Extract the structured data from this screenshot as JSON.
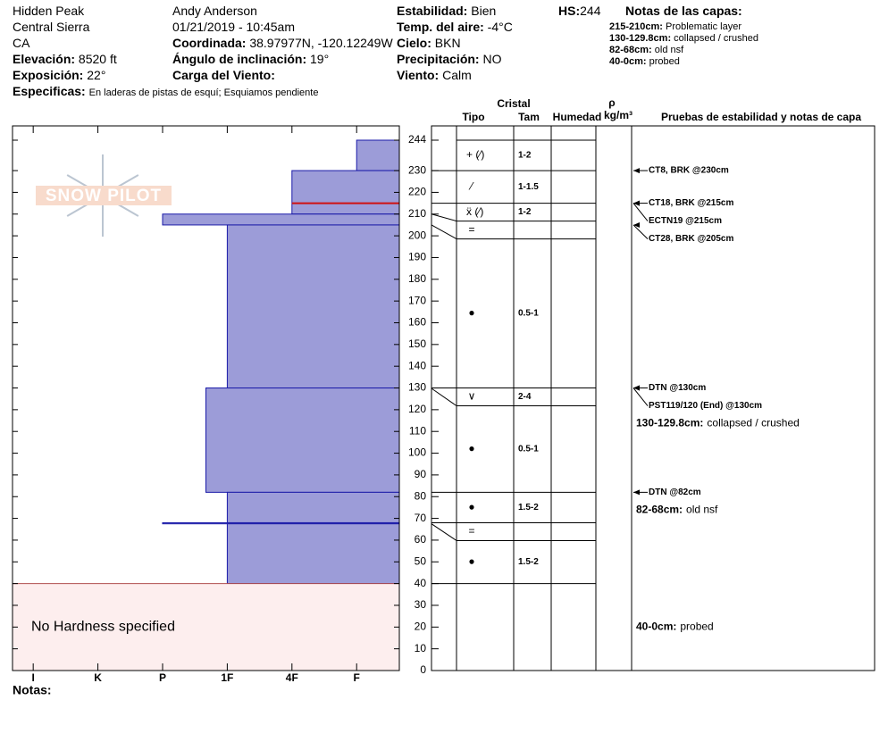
{
  "header": {
    "location": "Hidden Peak",
    "range": "Central Sierra",
    "state": "CA",
    "elevation": {
      "label": "Elevación:",
      "value": "8520 ft"
    },
    "aspect": {
      "label": "Exposición:",
      "value": "22°"
    },
    "specifics": {
      "label": "Especificas:",
      "value": "En laderas de pistas de esquí; Esquiamos pendiente"
    },
    "observer": "Andy Anderson",
    "datetime": "01/21/2019 - 10:45am",
    "coord": {
      "label": "Coordinada:",
      "value": "38.97977N, -120.12249W"
    },
    "slope": {
      "label": "Ángulo de inclinación:",
      "value": "19°"
    },
    "wind_load": {
      "label": "Carga del Viento:"
    },
    "stability": {
      "label": "Estabilidad:",
      "value": "Bien"
    },
    "air_temp": {
      "label": "Temp. del aire:",
      "value": "-4°C"
    },
    "sky": {
      "label": "Cielo:",
      "value": "BKN"
    },
    "precip": {
      "label": "Precipitación:",
      "value": "NO"
    },
    "wind": {
      "label": "Viento:",
      "value": "Calm"
    },
    "hs": {
      "label": "HS:",
      "value": "244"
    },
    "layer_notes_title": "Notas de las capas:"
  },
  "chart_data": {
    "type": "snow_profile",
    "logo": "SNOW PILOT",
    "xlim": [
      0.68,
      6.66
    ],
    "xticks": [
      {
        "value": 1,
        "label": "I"
      },
      {
        "value": 2,
        "label": "K"
      },
      {
        "value": 3,
        "label": "P"
      },
      {
        "value": 4,
        "label": "1F"
      },
      {
        "value": 5,
        "label": "4F"
      },
      {
        "value": 6,
        "label": "F"
      }
    ],
    "ylim": [
      0,
      244
    ],
    "yticks": [
      0,
      10,
      20,
      30,
      40,
      50,
      60,
      70,
      80,
      90,
      100,
      110,
      120,
      130,
      140,
      150,
      160,
      170,
      180,
      190,
      200,
      210,
      220,
      230,
      244
    ],
    "color": "#9c9cd8",
    "layers": [
      {
        "top": 244,
        "bottom": 230,
        "hardness": 6
      },
      {
        "top": 230,
        "bottom": 210,
        "hardness": 5
      },
      {
        "top": 210,
        "bottom": 205,
        "hardness": 3
      },
      {
        "top": 205,
        "bottom": 130,
        "hardness": 4
      },
      {
        "top": 130,
        "bottom": 82,
        "hardness": 3.67
      },
      {
        "top": 82,
        "bottom": 68,
        "hardness": 4
      },
      {
        "top": 68,
        "bottom": 67.5,
        "hardness": 3
      },
      {
        "top": 67.5,
        "bottom": 40,
        "hardness": 4
      }
    ],
    "problem_line": 215,
    "no_hardness": {
      "top": 40,
      "bottom": 0,
      "label": "No Hardness specified"
    },
    "columns": {
      "crystal": "Cristal",
      "type": "Tipo",
      "size": "Tam",
      "moisture": "Humedad",
      "rho": "ρ",
      "density": "kg/m³",
      "tests": "Pruebas de estabilidad y notas de capa"
    },
    "grains": [
      {
        "top": 244,
        "bottom": 230,
        "type": "+ (⁄)",
        "size": "1-2"
      },
      {
        "top": 230,
        "bottom": 215,
        "type": "⁄",
        "size": "1-1.5"
      },
      {
        "top": 215,
        "bottom": 210,
        "type": "ẍ (⁄)",
        "size": "1-2"
      },
      {
        "top": 210,
        "bottom": 205,
        "type": "="
      },
      {
        "top": 205,
        "bottom": 130,
        "type": "●",
        "size": "0.5-1"
      },
      {
        "top": 130,
        "bottom": 129.8,
        "type": "∨",
        "size": "2-4"
      },
      {
        "top": 129.8,
        "bottom": 82,
        "type": "●",
        "size": "0.5-1"
      },
      {
        "top": 82,
        "bottom": 68,
        "type": "●",
        "size": "1.5-2"
      },
      {
        "top": 68,
        "bottom": 67.5,
        "type": "="
      },
      {
        "top": 67.5,
        "bottom": 40,
        "type": "●",
        "size": "1.5-2"
      }
    ],
    "tests": [
      {
        "label": "CT8, BRK @230cm",
        "height": 230
      },
      {
        "label": "ECTN19 @215cm",
        "height": 215
      },
      {
        "label": "CT18, BRK @215cm",
        "height": 215
      },
      {
        "label": "CT28, BRK @205cm",
        "height": 205
      },
      {
        "label": "PST119/120 (End) @130cm",
        "height": 130
      },
      {
        "label": "DTN @130cm",
        "height": 130
      },
      {
        "label": "DTN @82cm",
        "height": 82
      }
    ],
    "notes": [
      {
        "range": "215-210cm:",
        "top": 215,
        "bottom": 210,
        "text": "Problematic layer",
        "in_profile": false
      },
      {
        "range": "130-129.8cm:",
        "top": 130,
        "bottom": 129.8,
        "text": "collapsed / crushed",
        "in_profile": true
      },
      {
        "range": "82-68cm:",
        "top": 82,
        "bottom": 68,
        "text": "old nsf",
        "in_profile": true
      },
      {
        "range": "40-0cm:",
        "top": 40,
        "bottom": 0,
        "text": "probed",
        "in_profile": true
      }
    ],
    "footer": "Notas:"
  }
}
